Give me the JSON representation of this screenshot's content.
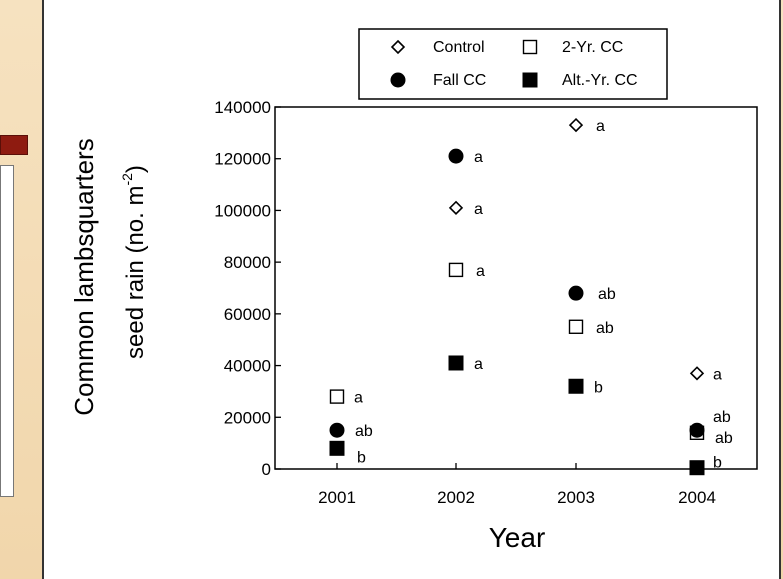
{
  "chart_data": {
    "type": "scatter",
    "xlabel": "Year",
    "ylabel_line1": "Common lambsquarters",
    "ylabel_line2": "seed rain (no. m",
    "ylabel_sup": "-2",
    "ylabel_close": ")",
    "categories": [
      "2001",
      "2002",
      "2003",
      "2004"
    ],
    "ylim": [
      0,
      140000
    ],
    "yticks": [
      "0",
      "20000",
      "40000",
      "60000",
      "80000",
      "100000",
      "120000",
      "140000"
    ],
    "legend_position": "top",
    "series": [
      {
        "name": "Control",
        "marker": "open-diamond",
        "values": [
          null,
          101000,
          133000,
          37000
        ],
        "letters": [
          "",
          "a",
          "a",
          "a"
        ]
      },
      {
        "name": "2-Yr. CC",
        "marker": "open-square",
        "values": [
          28000,
          77000,
          55000,
          14000
        ],
        "letters": [
          "a",
          "a",
          "ab",
          "ab"
        ]
      },
      {
        "name": "Fall CC",
        "marker": "filled-circle",
        "values": [
          15000,
          121000,
          68000,
          15000
        ],
        "letters": [
          "ab",
          "a",
          "ab",
          "ab"
        ]
      },
      {
        "name": "Alt.-Yr. CC",
        "marker": "filled-square",
        "values": [
          8000,
          41000,
          32000,
          500
        ],
        "letters": [
          "b",
          "a",
          "b",
          "b"
        ]
      }
    ]
  }
}
